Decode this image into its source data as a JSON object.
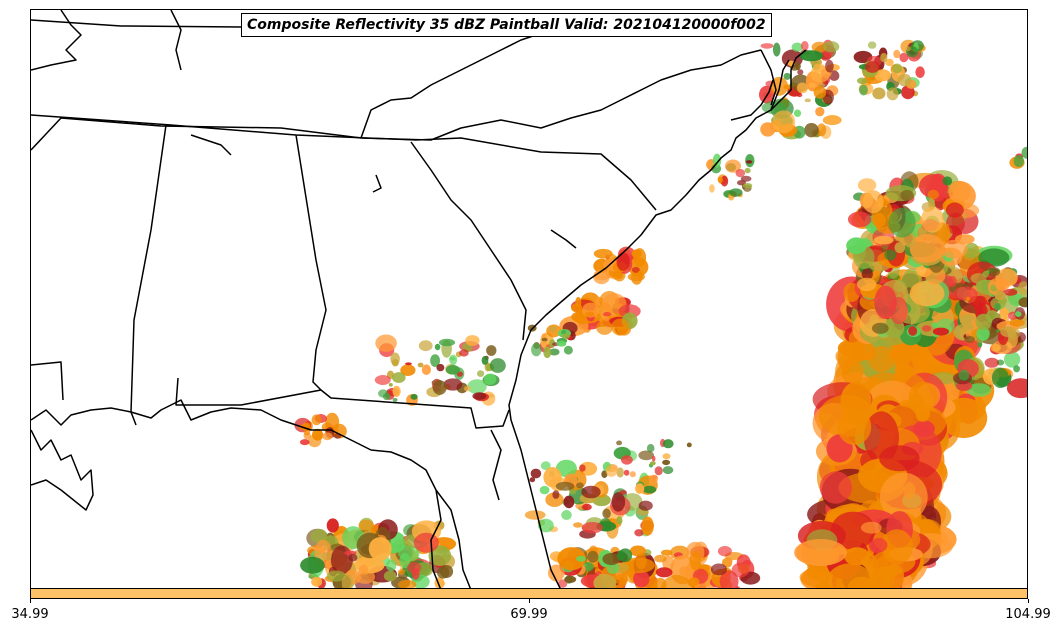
{
  "title": "Composite Reflectivity 35 dBZ Paintball Valid: 202104120000f002",
  "colorbar": {
    "color": "#ffc266",
    "min": 34.99,
    "max": 104.99,
    "ticks": [
      {
        "value": 34.99,
        "label": "34.99"
      },
      {
        "value": 69.99,
        "label": "69.99"
      },
      {
        "value": 104.99,
        "label": "104.99"
      }
    ]
  },
  "map": {
    "region": "Southeastern United States",
    "boundaries": [
      "state-borders",
      "coastline"
    ],
    "colors": {
      "boundary": "#000000",
      "paint": [
        "#f28a00",
        "#ff9a33",
        "#ffb040",
        "#ee3b3b",
        "#d81e1e",
        "#3fa33f",
        "#5fd65f",
        "#2b8a2b",
        "#8b1a1a",
        "#9aad3a",
        "#c9a53a",
        "#7a5a1a"
      ]
    }
  }
}
